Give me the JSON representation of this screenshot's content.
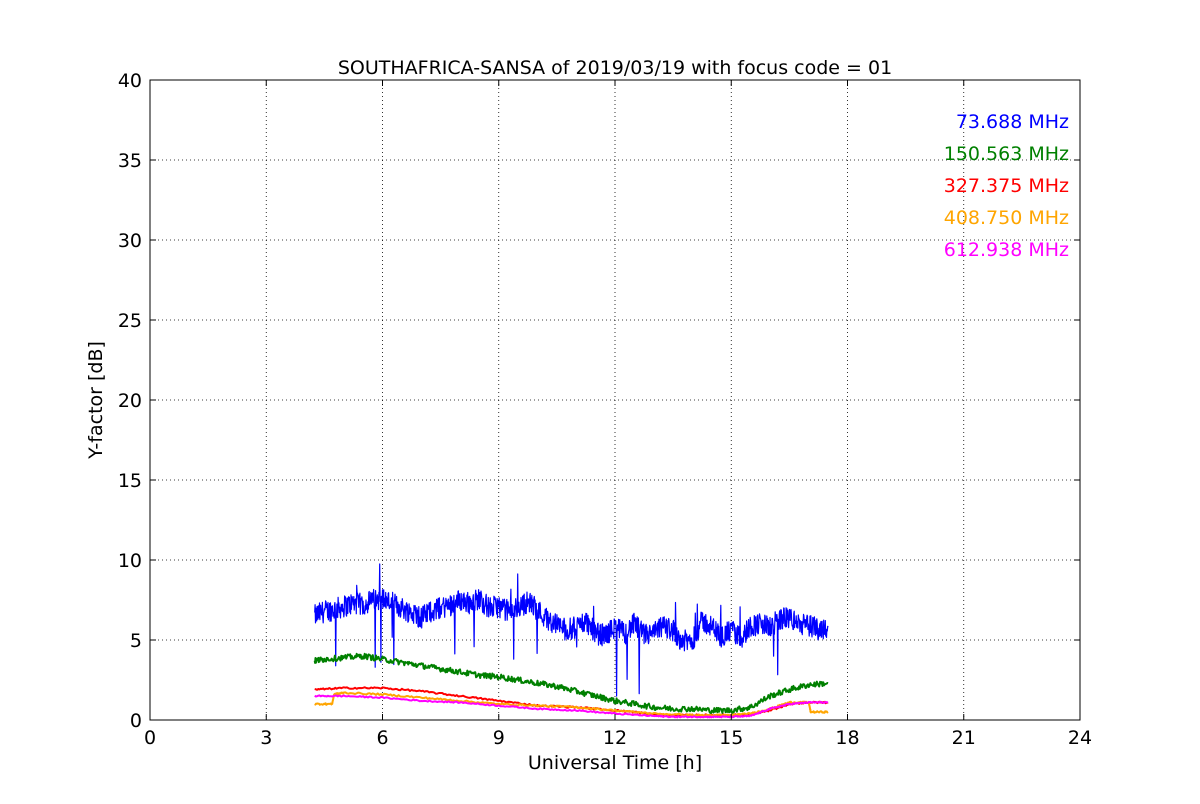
{
  "chart_data": {
    "type": "line",
    "title": "SOUTHAFRICA-SANSA of 2019/03/19 with focus code = 01",
    "xlabel": "Universal Time [h]",
    "ylabel": "Y-factor [dB]",
    "xlim": [
      0,
      24
    ],
    "ylim": [
      0,
      40
    ],
    "xticks": [
      0,
      3,
      6,
      9,
      12,
      15,
      18,
      21,
      24
    ],
    "yticks": [
      0,
      5,
      10,
      15,
      20,
      25,
      30,
      35,
      40
    ],
    "grid": true,
    "legend_position": "top-right",
    "series": [
      {
        "name": "73.688 MHz",
        "color": "#0000ff",
        "x": [
          4.25,
          4.5,
          4.75,
          5.0,
          5.25,
          5.5,
          5.75,
          6.0,
          6.25,
          6.5,
          6.75,
          7.0,
          7.25,
          7.5,
          7.75,
          8.0,
          8.25,
          8.5,
          8.75,
          9.0,
          9.25,
          9.5,
          9.75,
          10.0,
          10.25,
          10.5,
          10.75,
          11.0,
          11.25,
          11.5,
          11.75,
          12.0,
          12.25,
          12.5,
          12.75,
          13.0,
          13.25,
          13.5,
          13.75,
          14.0,
          14.25,
          14.5,
          14.75,
          15.0,
          15.25,
          15.5,
          15.75,
          16.0,
          16.25,
          16.5,
          16.75,
          17.0,
          17.25,
          17.5
        ],
        "values": [
          6.5,
          6.8,
          6.9,
          7.1,
          7.3,
          7.2,
          7.5,
          7.6,
          7.3,
          7.0,
          6.7,
          6.4,
          6.8,
          7.0,
          7.2,
          7.5,
          7.3,
          7.6,
          7.0,
          7.1,
          6.8,
          7.0,
          7.4,
          6.9,
          6.3,
          6.0,
          5.6,
          5.8,
          6.2,
          5.4,
          5.3,
          5.8,
          5.4,
          6.0,
          5.3,
          5.4,
          5.9,
          5.6,
          4.9,
          5.0,
          6.2,
          5.8,
          5.2,
          5.6,
          5.1,
          5.9,
          6.0,
          5.8,
          6.3,
          6.4,
          6.0,
          5.9,
          5.7,
          5.8
        ],
        "noise": 1.4
      },
      {
        "name": "150.563 MHz",
        "color": "#008000",
        "x": [
          4.25,
          4.5,
          5.0,
          5.5,
          6.0,
          6.5,
          7.0,
          7.5,
          8.0,
          8.5,
          9.0,
          9.5,
          10.0,
          10.5,
          11.0,
          11.5,
          12.0,
          12.5,
          13.0,
          13.5,
          14.0,
          14.5,
          15.0,
          15.5,
          16.0,
          16.5,
          17.0,
          17.5
        ],
        "values": [
          3.7,
          3.8,
          3.9,
          4.0,
          3.8,
          3.6,
          3.4,
          3.2,
          3.0,
          2.8,
          2.7,
          2.5,
          2.3,
          2.1,
          1.8,
          1.5,
          1.2,
          1.0,
          0.8,
          0.7,
          0.7,
          0.6,
          0.6,
          0.8,
          1.5,
          1.9,
          2.2,
          2.3
        ],
        "noise": 0.35
      },
      {
        "name": "327.375 MHz",
        "color": "#ff0000",
        "x": [
          4.25,
          5.0,
          6.0,
          7.0,
          8.0,
          9.0,
          10.0,
          11.0,
          12.0,
          12.5,
          13.0,
          13.5,
          14.0,
          14.5,
          15.0,
          15.5,
          16.0,
          16.5,
          17.0,
          17.5
        ],
        "values": [
          1.9,
          2.0,
          2.0,
          1.8,
          1.5,
          1.2,
          0.9,
          0.8,
          0.6,
          0.5,
          0.35,
          0.3,
          0.3,
          0.3,
          0.3,
          0.35,
          0.6,
          1.0,
          1.1,
          1.1
        ],
        "noise": 0.1
      },
      {
        "name": "408.750 MHz",
        "color": "#ffa500",
        "x": [
          4.25,
          4.7,
          4.75,
          5.0,
          6.0,
          7.0,
          8.0,
          9.0,
          10.0,
          11.0,
          12.0,
          13.0,
          14.0,
          15.0,
          15.5,
          16.0,
          16.5,
          17.0,
          17.05,
          17.5
        ],
        "values": [
          1.0,
          1.0,
          1.6,
          1.7,
          1.6,
          1.4,
          1.2,
          1.0,
          0.9,
          0.8,
          0.6,
          0.4,
          0.3,
          0.3,
          0.4,
          0.7,
          1.1,
          1.1,
          0.5,
          0.5
        ],
        "noise": 0.1
      },
      {
        "name": "612.938 MHz",
        "color": "#ff00ff",
        "x": [
          4.25,
          5.0,
          6.0,
          7.0,
          8.0,
          9.0,
          10.0,
          11.0,
          12.0,
          13.0,
          13.5,
          14.0,
          14.5,
          15.0,
          15.5,
          16.0,
          16.5,
          17.0,
          17.5
        ],
        "values": [
          1.5,
          1.5,
          1.4,
          1.2,
          1.1,
          0.9,
          0.7,
          0.6,
          0.4,
          0.25,
          0.2,
          0.2,
          0.2,
          0.2,
          0.25,
          0.7,
          1.0,
          1.1,
          1.1
        ],
        "noise": 0.08
      }
    ]
  }
}
